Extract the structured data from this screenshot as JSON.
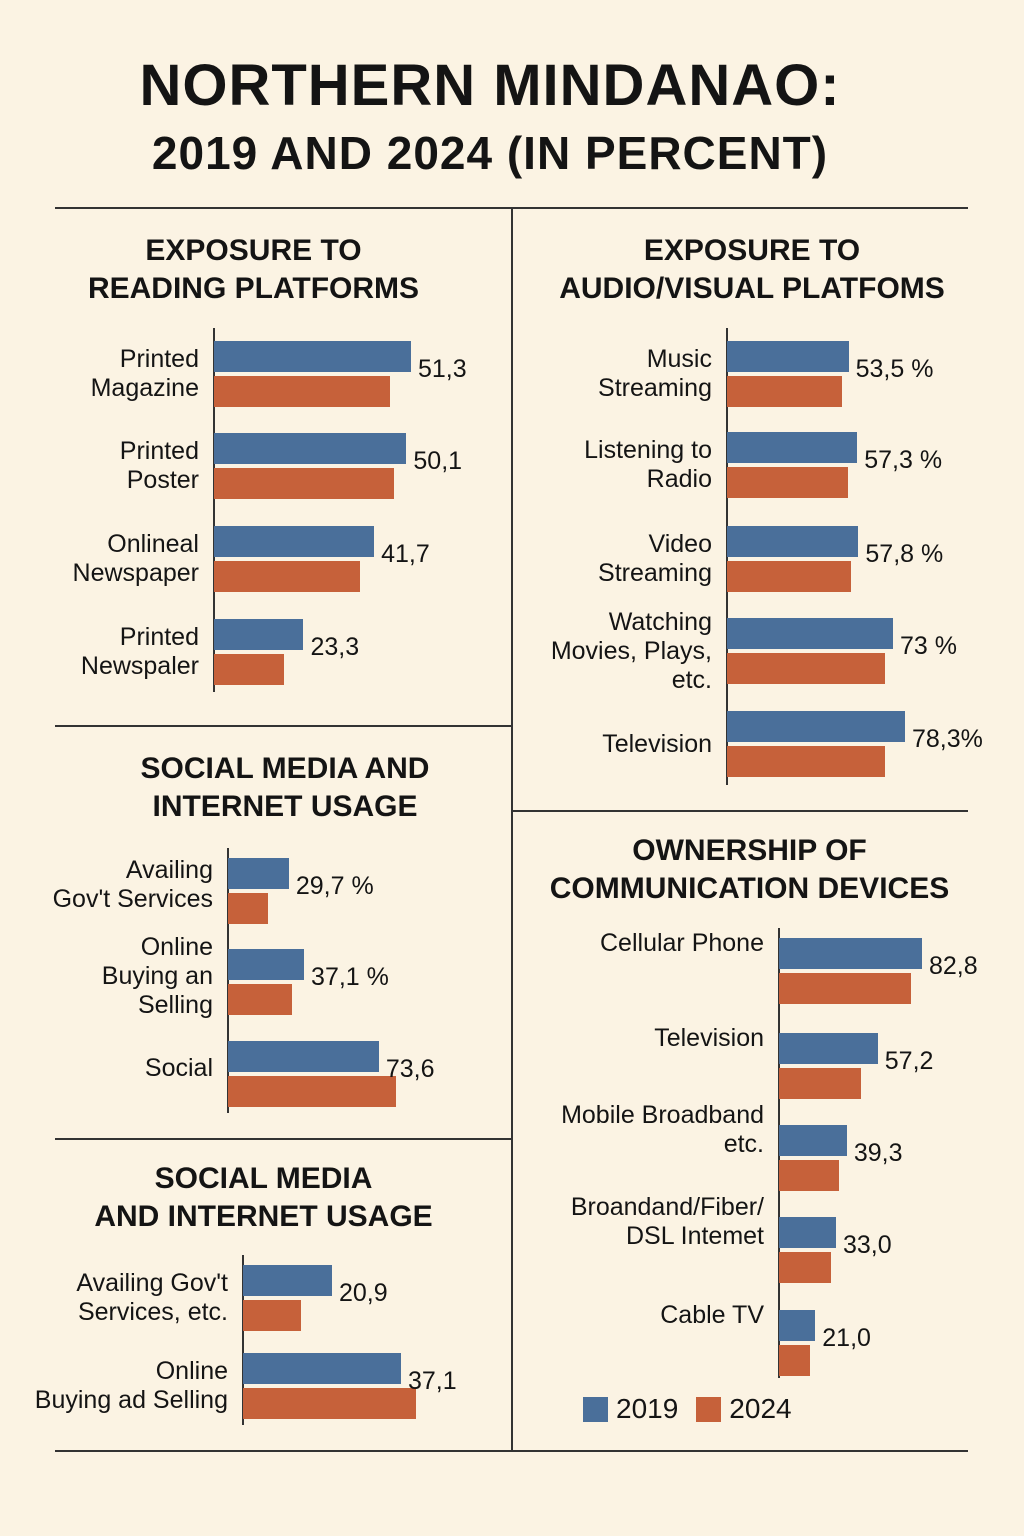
{
  "title_line1": "NORTHERN MINDANAO:",
  "title_line2": "2019 AND 2024 (IN PERCENT)",
  "colors": {
    "2019": "#4a6f9a",
    "2024": "#c6613a",
    "background": "#fbf3e3"
  },
  "legend": [
    "2019",
    "2024"
  ],
  "chart_data": [
    {
      "type": "bar",
      "orientation": "horizontal",
      "title": [
        "EXPOSURE TO",
        "READING PLATFORMS"
      ],
      "categories": [
        [
          "Printed",
          "Magazine"
        ],
        [
          "Printed",
          "Poster"
        ],
        [
          "Onlineal",
          "Newspaper"
        ],
        [
          "Printed",
          "Newspaler"
        ]
      ],
      "series": [
        {
          "name": "2019",
          "values": [
            51.3,
            50.1,
            41.7,
            23.3
          ]
        },
        {
          "name": "2024",
          "values": [
            45.8,
            47.0,
            38.1,
            18.3
          ]
        }
      ],
      "value_labels": [
        "51,3",
        "50,1",
        "41,7",
        "23,3"
      ]
    },
    {
      "type": "bar",
      "orientation": "horizontal",
      "title": [
        "EXPOSURE TO",
        "AUDIO/VISUAL PLATFOMS"
      ],
      "categories": [
        [
          "Music",
          "Streaming"
        ],
        [
          "Listening to",
          "Radio"
        ],
        [
          "Video",
          "Streaming"
        ],
        [
          "Watching",
          "Movies, Plays,",
          "etc."
        ],
        [
          "Television"
        ]
      ],
      "series": [
        {
          "name": "2019",
          "values": [
            53.5,
            57.3,
            57.8,
            73,
            78.3
          ]
        },
        {
          "name": "2024",
          "values": [
            50.4,
            53.3,
            54.5,
            69.6,
            69.5
          ]
        }
      ],
      "value_labels": [
        "53,5 %",
        "57,3 %",
        "57,8 %",
        "73 %",
        "78,3%"
      ]
    },
    {
      "type": "bar",
      "orientation": "horizontal",
      "title": [
        "SOCIAL MEDIA AND",
        "INTERNET USAGE"
      ],
      "categories": [
        [
          "Availing",
          "Gov't Services"
        ],
        [
          "Online",
          "Buying an",
          "Selling"
        ],
        [
          "Social"
        ]
      ],
      "series": [
        {
          "name": "2019",
          "values": [
            29.7,
            37.1,
            73.6
          ]
        },
        {
          "name": "2024",
          "values": [
            19.7,
            31.2,
            81.8
          ]
        }
      ],
      "value_labels": [
        "29,7 %",
        "37,1 %",
        "73,6"
      ]
    },
    {
      "type": "bar",
      "orientation": "horizontal",
      "title": [
        "SOCIAL MEDIA",
        "AND INTERNET USAGE"
      ],
      "categories": [
        [
          "Availing Gov't",
          "Services, etc."
        ],
        [
          "Online",
          "Buying ad Selling"
        ]
      ],
      "series": [
        {
          "name": "2019",
          "values": [
            20.9,
            37.1
          ]
        },
        {
          "name": "2024",
          "values": [
            13.6,
            40.6
          ]
        }
      ],
      "value_labels": [
        "20,9",
        "37,1"
      ]
    },
    {
      "type": "bar",
      "orientation": "horizontal",
      "title": [
        "OWNERSHIP OF",
        "COMMUNICATION DEVICES"
      ],
      "categories": [
        [
          "Cellular Phone"
        ],
        [
          "Television"
        ],
        [
          "Mobile Broadband",
          "etc."
        ],
        [
          "Broandand/Fiber/",
          "DSL Intemet"
        ],
        [
          "Cable TV"
        ]
      ],
      "series": [
        {
          "name": "2019",
          "values": [
            82.8,
            57.2,
            39.3,
            33.0,
            21.0
          ]
        },
        {
          "name": "2024",
          "values": [
            76.4,
            47.7,
            34.5,
            30.0,
            18.0
          ]
        }
      ],
      "value_labels": [
        "82,8",
        "57,2",
        "39,3",
        "33,0",
        "21,0"
      ]
    }
  ]
}
